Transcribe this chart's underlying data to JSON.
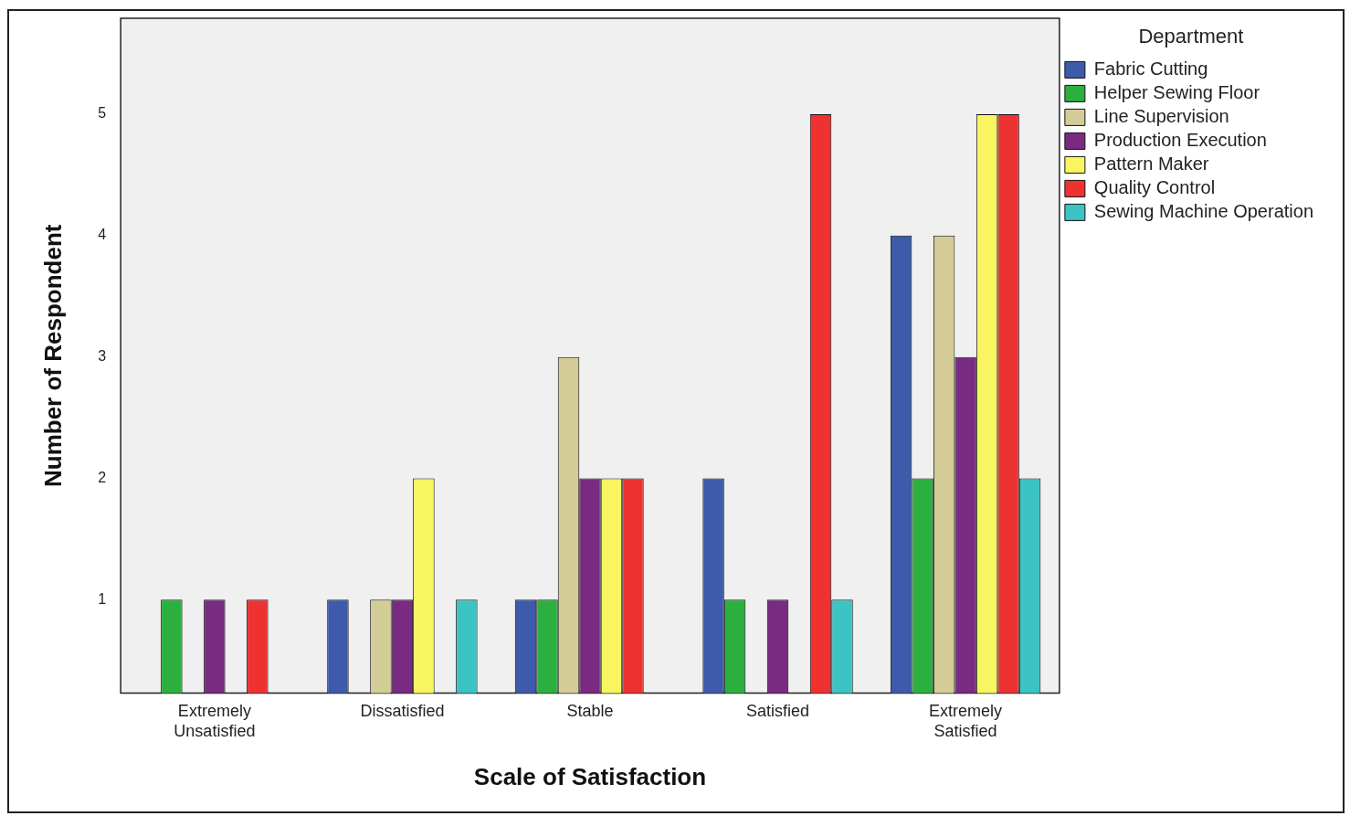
{
  "chart_data": {
    "type": "bar",
    "xlabel": "Scale of Satisfaction",
    "ylabel": "Number of Respondent",
    "legend_title": "Department",
    "legend": "top right",
    "grid": false,
    "categories": [
      "Extremely Unsatisfied",
      "Dissatisfied",
      "Stable",
      "Satisfied",
      "Extremely Satisfied"
    ],
    "ylim": [
      0.23,
      5.79
    ],
    "yticks": [
      1,
      2,
      3,
      4,
      5
    ],
    "series": [
      {
        "name": "Fabric Cutting",
        "color": "#3d5aab",
        "values": [
          null,
          1,
          1,
          2,
          4
        ]
      },
      {
        "name": "Helper Sewing Floor",
        "color": "#2bb040",
        "values": [
          1,
          null,
          1,
          1,
          2
        ]
      },
      {
        "name": "Line Supervision",
        "color": "#d4cc96",
        "values": [
          null,
          1,
          3,
          null,
          4
        ]
      },
      {
        "name": "Production Execution",
        "color": "#782b80",
        "values": [
          1,
          1,
          2,
          1,
          3
        ]
      },
      {
        "name": "Pattern Maker",
        "color": "#f8f560",
        "values": [
          null,
          2,
          2,
          null,
          5
        ]
      },
      {
        "name": "Quality Control",
        "color": "#ee3232",
        "values": [
          1,
          null,
          2,
          5,
          5
        ]
      },
      {
        "name": "Sewing Machine Operation",
        "color": "#3cc3c3",
        "values": [
          null,
          1,
          null,
          1,
          2
        ]
      }
    ]
  }
}
